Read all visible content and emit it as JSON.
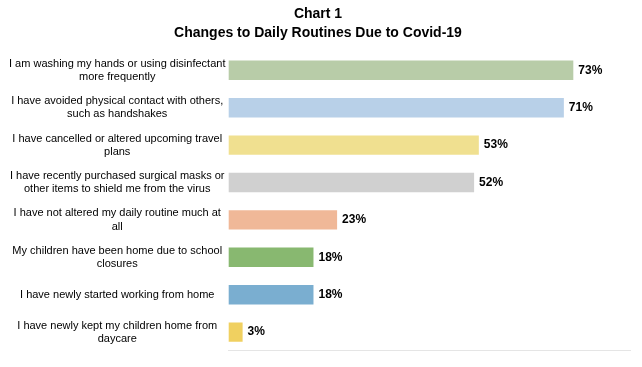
{
  "chart_data": {
    "type": "bar",
    "orientation": "horizontal",
    "title": "Chart 1",
    "subtitle": "Changes to Daily Routines Due to Covid-19",
    "categories": [
      "I have newly kept my children home from\ndaycare",
      "I have newly started working from home",
      "My children have been home due to school\nclosures",
      "I have not altered my daily routine much at\nall",
      "I have recently purchased surgical masks or\nother items to shield me from the virus",
      "I have cancelled or altered upcoming travel\nplans",
      "I have avoided physical contact with others,\nsuch as handshakes",
      "I am washing my hands or using disinfectant\nmore frequently"
    ],
    "values": [
      3,
      18,
      18,
      23,
      52,
      53,
      71,
      73
    ],
    "value_labels": [
      "3%",
      "18%",
      "18%",
      "23%",
      "52%",
      "53%",
      "71%",
      "73%"
    ],
    "colors": [
      "#f0d060",
      "#7aaed0",
      "#88b870",
      "#f0b898",
      "#d0d0d0",
      "#f0e090",
      "#b8d0e8",
      "#b8cca8"
    ],
    "xlim": [
      0,
      85
    ],
    "grid": false,
    "data_labels": true,
    "tick_labels": "y"
  }
}
